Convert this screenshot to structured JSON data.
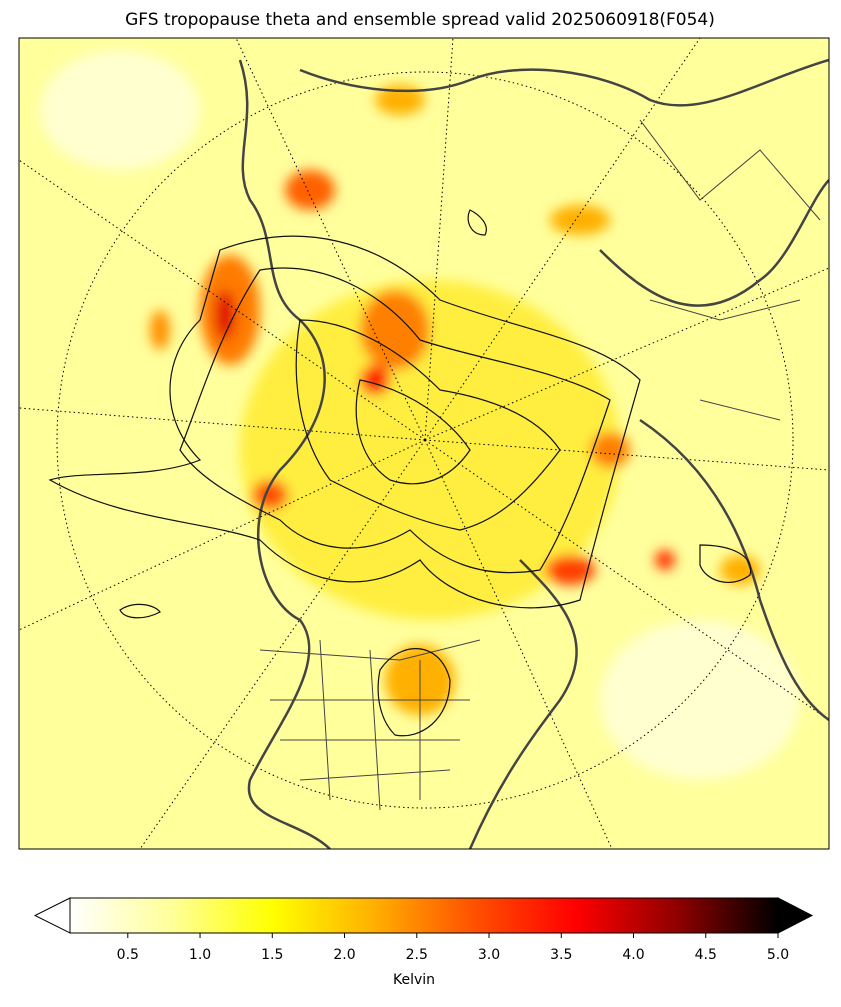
{
  "chart_data": {
    "type": "map",
    "title": "GFS tropopause theta and ensemble spread valid 2025060918(F054)",
    "colorbar": {
      "label": "Kelvin",
      "lim": [
        0.1,
        5
      ],
      "ticks": [
        0.5,
        {
          "value": 1,
          "label": "1.0"
        },
        1.5,
        {
          "value": 2,
          "label": "2.0"
        },
        2.5,
        {
          "value": 3,
          "label": "3.0"
        },
        3.5,
        {
          "value": 4,
          "label": "4.0"
        },
        4.5,
        {
          "value": 5,
          "label": "5.0"
        }
      ],
      "colors": [
        "#ffffff",
        "#ffff9a",
        "#ffff00",
        "#ffb000",
        "#ff5000",
        "#ff0000",
        "#900000",
        "#000000"
      ]
    }
  }
}
